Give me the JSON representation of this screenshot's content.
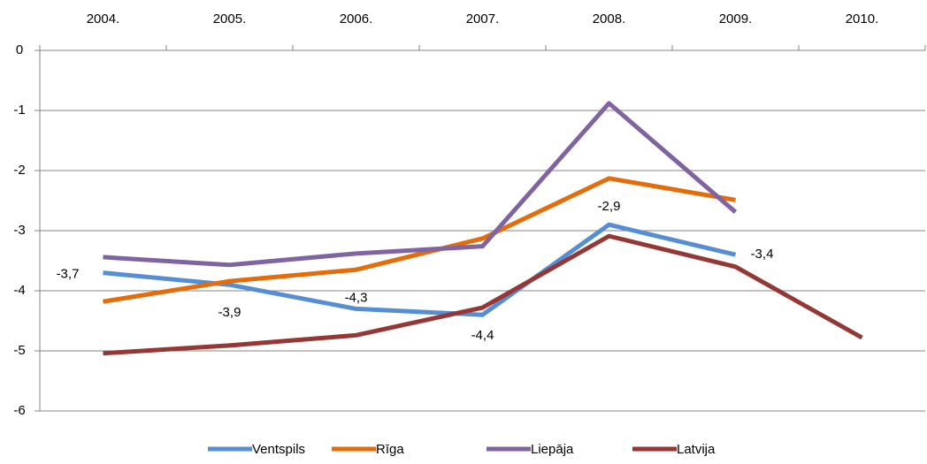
{
  "chart_data": {
    "type": "line",
    "categories": [
      "2004.",
      "2005.",
      "2006.",
      "2007.",
      "2008.",
      "2009.",
      "2010."
    ],
    "series": [
      {
        "name": "Ventspils",
        "color": "#558ed5",
        "values": [
          -3.7,
          -3.9,
          -4.3,
          -4.4,
          -2.9,
          -3.4,
          null
        ],
        "value_labels": [
          "-3,7",
          "-3,9",
          "-4,3",
          "-4,4",
          "-2,9",
          "-3,4",
          null
        ]
      },
      {
        "name": "Rīga",
        "color": "#e46c0a",
        "values": [
          -4.18,
          -3.84,
          -3.65,
          -3.13,
          -2.13,
          -2.49,
          null
        ]
      },
      {
        "name": "Liepāja",
        "color": "#8064a2",
        "values": [
          -3.44,
          -3.57,
          -3.38,
          -3.26,
          -0.88,
          -2.69,
          null
        ]
      },
      {
        "name": "Latvija",
        "color": "#953735",
        "values": [
          -5.04,
          -4.91,
          -4.74,
          -4.28,
          -3.09,
          -3.6,
          -4.78
        ]
      }
    ],
    "ylim": [
      -6,
      0
    ],
    "yticks": [
      -6,
      -5,
      -4,
      -3,
      -2,
      -1,
      0
    ],
    "grid": true
  }
}
